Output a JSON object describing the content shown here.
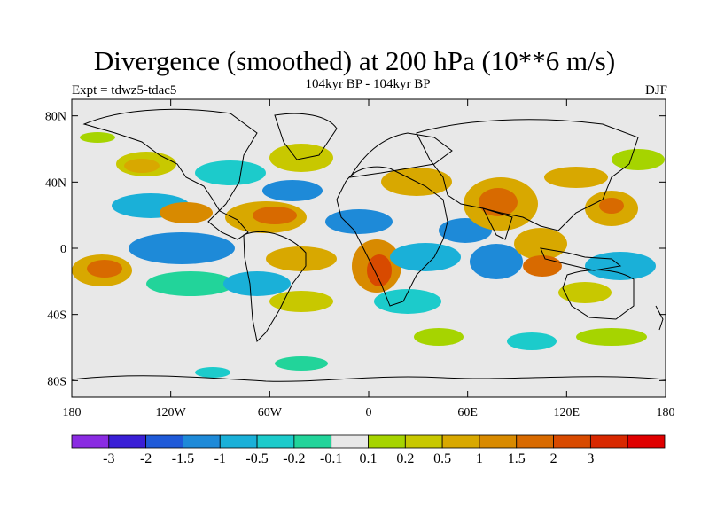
{
  "title": "Divergence (smoothed) at 200 hPa (10**6 m/s)",
  "subtitle": "104kyr BP - 104kyr BP",
  "experiment": "Expt = tdwz5-tdac5",
  "season": "DJF",
  "map": {
    "projection": "equirectangular",
    "lon_range": [
      -180,
      180
    ],
    "lat_range": [
      -90,
      90
    ],
    "background_color": "#e8e8e8",
    "coastline_color": "#000000",
    "lat_ticks": [
      {
        "value": 80,
        "label": "80N"
      },
      {
        "value": 40,
        "label": "40N"
      },
      {
        "value": 0,
        "label": "0"
      },
      {
        "value": -40,
        "label": "40S"
      },
      {
        "value": -80,
        "label": "80S"
      }
    ],
    "lon_ticks": [
      {
        "value": -180,
        "label": "180"
      },
      {
        "value": -120,
        "label": "120W"
      },
      {
        "value": -60,
        "label": "60W"
      },
      {
        "value": 0,
        "label": "0"
      },
      {
        "value": 60,
        "label": "60E"
      },
      {
        "value": 120,
        "label": "120E"
      },
      {
        "value": 180,
        "label": "180"
      }
    ]
  },
  "colorbar": {
    "colors": [
      "#8a2be2",
      "#3a1fd6",
      "#1f5ad8",
      "#1e8ad8",
      "#1ab0d8",
      "#1ccbcb",
      "#22d49a",
      "#e8e8e8",
      "#a6d400",
      "#c8c800",
      "#d8a800",
      "#d88a00",
      "#d86a00",
      "#d84a00",
      "#d82800",
      "#e00000"
    ],
    "labels": [
      "-3",
      "-2",
      "-1.5",
      "-1",
      "-0.5",
      "-0.2",
      "-0.1",
      "0.1",
      "0.2",
      "0.5",
      "1",
      "1.5",
      "2",
      "3"
    ]
  }
}
